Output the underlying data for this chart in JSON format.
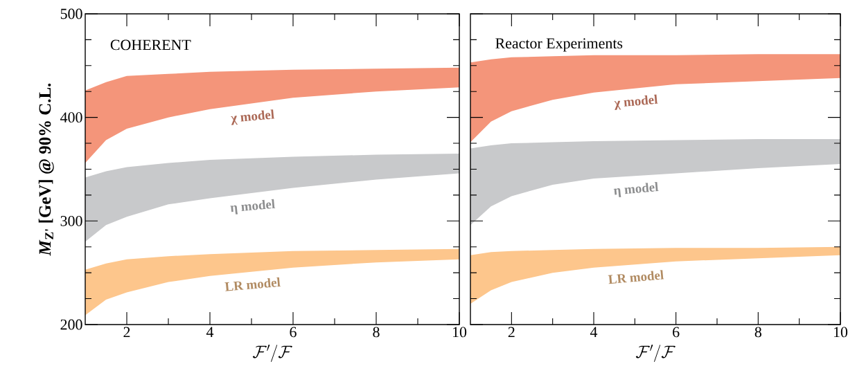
{
  "chart_data": [
    {
      "type": "area",
      "title": "COHERENT",
      "xlabel": "\\mathcal{F}'/\\mathcal{F}",
      "ylabel": "*M*$_{Z'}$ [GeV]  @ 90% C.L.",
      "x": [
        1,
        1.5,
        2,
        3,
        4,
        6,
        8,
        10
      ],
      "series": [
        {
          "color": "#f4957a",
          "values": [
            null,
            null,
            null,
            null,
            null,
            null,
            null,
            null
          ],
          "upper": [
            426,
            434,
            440,
            442,
            444,
            446,
            447,
            448
          ],
          "lower": [
            356,
            378,
            389,
            400,
            408,
            419,
            425,
            429
          ]
        },
        {
          "color": "#c8c9cb",
          "values": [
            null,
            null,
            null,
            null,
            null,
            null,
            null,
            null
          ],
          "upper": [
            342,
            348,
            352,
            356,
            359,
            362,
            364,
            365
          ],
          "lower": [
            280,
            296,
            304,
            316,
            322,
            332,
            340,
            346
          ]
        },
        {
          "color": "#fdc68c",
          "values": [
            null,
            null,
            null,
            null,
            null,
            null,
            null,
            null
          ],
          "upper": [
            253,
            259,
            263,
            266,
            268,
            271,
            272,
            273
          ],
          "lower": [
            209,
            224,
            231,
            241,
            247,
            255,
            260,
            263
          ]
        }
      ],
      "annotations": [
        "χ model",
        "η model",
        "LR model"
      ],
      "xlim": [
        1,
        10
      ],
      "ylim": [
        200,
        500
      ],
      "xticks": [
        2,
        4,
        6,
        8,
        10
      ],
      "yticks": [
        200,
        300,
        400,
        500
      ]
    },
    {
      "type": "area",
      "title": "Reactor Experiments",
      "xlabel": "\\mathcal{F}'/\\mathcal{F}",
      "x": [
        1,
        1.5,
        2,
        3,
        4,
        6,
        8,
        10
      ],
      "series": [
        {
          "color": "#f4957a",
          "values": [
            null,
            null,
            null,
            null,
            null,
            null,
            null,
            null
          ],
          "upper": [
            453,
            456,
            458,
            459,
            460,
            460,
            461,
            461
          ],
          "lower": [
            376,
            396,
            406,
            417,
            424,
            432,
            435,
            438
          ]
        },
        {
          "color": "#c8c9cb",
          "values": [
            null,
            null,
            null,
            null,
            null,
            null,
            null,
            null
          ],
          "upper": [
            370,
            373,
            375,
            376,
            377,
            378,
            379,
            379
          ],
          "lower": [
            296,
            314,
            324,
            335,
            341,
            346,
            351,
            355
          ]
        },
        {
          "color": "#fdc68c",
          "values": [
            null,
            null,
            null,
            null,
            null,
            null,
            null,
            null
          ],
          "upper": [
            267,
            270,
            271,
            272,
            273,
            274,
            274,
            275
          ],
          "lower": [
            220,
            233,
            241,
            250,
            255,
            261,
            264,
            267
          ]
        }
      ],
      "annotations": [
        "χ model",
        "η model",
        "LR model"
      ],
      "xlim": [
        1,
        10
      ],
      "ylim": [
        200,
        500
      ],
      "xticks": [
        2,
        4,
        6,
        8,
        10
      ],
      "yticks": [
        200,
        300,
        400,
        500
      ],
      "tick_labels": "x"
    }
  ]
}
